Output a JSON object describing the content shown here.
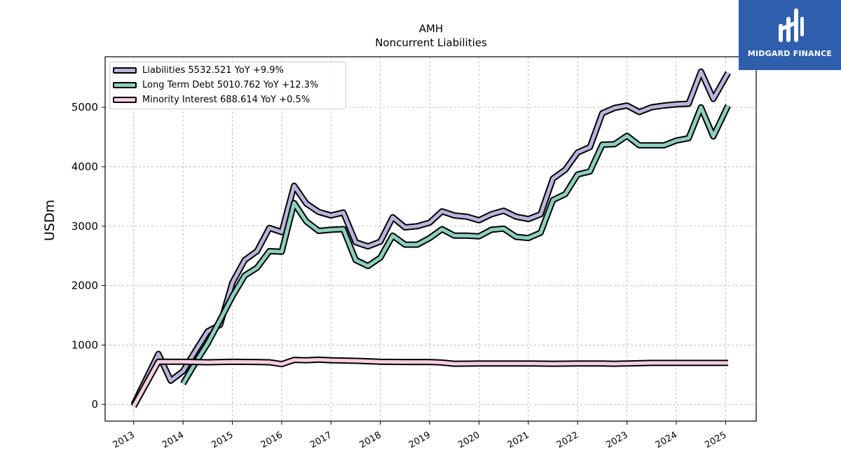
{
  "chart_data": {
    "type": "line",
    "title": "AMH",
    "subtitle": "Noncurrent  Liabilities",
    "ylabel": "USDm",
    "xlabel": "",
    "ylim": [
      -280,
      5850
    ],
    "xlim": [
      2012.42,
      2025.62
    ],
    "yticks": [
      0,
      1000,
      2000,
      3000,
      4000,
      5000
    ],
    "xticks": [
      "2013",
      "2014",
      "2015",
      "2016",
      "2017",
      "2018",
      "2019",
      "2020",
      "2021",
      "2022",
      "2023",
      "2024",
      "2025"
    ],
    "grid": true,
    "legend_position": "top-left",
    "series": [
      {
        "name": "Liabilities  5532.521 YoY +9.9%",
        "color": "#b8b5dc",
        "points": [
          [
            2013.0,
            0
          ],
          [
            2013.5,
            850
          ],
          [
            2013.75,
            400
          ],
          [
            2014.0,
            560
          ],
          [
            2014.25,
            900
          ],
          [
            2014.5,
            1230
          ],
          [
            2014.75,
            1340
          ],
          [
            2015.0,
            2050
          ],
          [
            2015.25,
            2430
          ],
          [
            2015.5,
            2580
          ],
          [
            2015.75,
            2970
          ],
          [
            2016.0,
            2900
          ],
          [
            2016.25,
            3680
          ],
          [
            2016.5,
            3380
          ],
          [
            2016.75,
            3240
          ],
          [
            2017.0,
            3180
          ],
          [
            2017.25,
            3230
          ],
          [
            2017.5,
            2730
          ],
          [
            2017.75,
            2660
          ],
          [
            2018.0,
            2740
          ],
          [
            2018.25,
            3150
          ],
          [
            2018.5,
            2980
          ],
          [
            2018.75,
            3000
          ],
          [
            2019.0,
            3060
          ],
          [
            2019.25,
            3250
          ],
          [
            2019.5,
            3180
          ],
          [
            2019.75,
            3160
          ],
          [
            2020.0,
            3100
          ],
          [
            2020.25,
            3200
          ],
          [
            2020.5,
            3260
          ],
          [
            2020.75,
            3160
          ],
          [
            2021.0,
            3120
          ],
          [
            2021.25,
            3200
          ],
          [
            2021.5,
            3800
          ],
          [
            2021.75,
            3950
          ],
          [
            2022.0,
            4240
          ],
          [
            2022.25,
            4330
          ],
          [
            2022.5,
            4900
          ],
          [
            2022.75,
            4990
          ],
          [
            2023.0,
            5030
          ],
          [
            2023.25,
            4920
          ],
          [
            2023.5,
            5000
          ],
          [
            2023.75,
            5030
          ],
          [
            2024.0,
            5050
          ],
          [
            2024.25,
            5060
          ],
          [
            2024.5,
            5600
          ],
          [
            2024.75,
            5140
          ],
          [
            2025.05,
            5580
          ]
        ]
      },
      {
        "name": "Long Term Debt  5010.762 YoY +12.3%",
        "color": "#8ccfbf",
        "points": [
          [
            2014.0,
            350
          ],
          [
            2014.25,
            700
          ],
          [
            2014.5,
            1030
          ],
          [
            2014.75,
            1420
          ],
          [
            2015.0,
            1820
          ],
          [
            2015.25,
            2170
          ],
          [
            2015.5,
            2300
          ],
          [
            2015.75,
            2580
          ],
          [
            2016.0,
            2570
          ],
          [
            2016.25,
            3390
          ],
          [
            2016.5,
            3080
          ],
          [
            2016.75,
            2920
          ],
          [
            2017.0,
            2940
          ],
          [
            2017.25,
            2950
          ],
          [
            2017.5,
            2430
          ],
          [
            2017.75,
            2330
          ],
          [
            2018.0,
            2470
          ],
          [
            2018.25,
            2840
          ],
          [
            2018.5,
            2690
          ],
          [
            2018.75,
            2690
          ],
          [
            2019.0,
            2800
          ],
          [
            2019.25,
            2950
          ],
          [
            2019.5,
            2840
          ],
          [
            2019.75,
            2840
          ],
          [
            2020.0,
            2830
          ],
          [
            2020.25,
            2940
          ],
          [
            2020.5,
            2960
          ],
          [
            2020.75,
            2820
          ],
          [
            2021.0,
            2800
          ],
          [
            2021.25,
            2890
          ],
          [
            2021.5,
            3440
          ],
          [
            2021.75,
            3540
          ],
          [
            2022.0,
            3870
          ],
          [
            2022.25,
            3920
          ],
          [
            2022.5,
            4370
          ],
          [
            2022.75,
            4380
          ],
          [
            2023.0,
            4520
          ],
          [
            2023.25,
            4360
          ],
          [
            2023.5,
            4360
          ],
          [
            2023.75,
            4360
          ],
          [
            2024.0,
            4440
          ],
          [
            2024.25,
            4480
          ],
          [
            2024.5,
            5000
          ],
          [
            2024.75,
            4510
          ],
          [
            2025.05,
            5030
          ]
        ]
      },
      {
        "name": "Minority Interest  688.614 YoY +0.5%",
        "color": "#f8cfe0",
        "points": [
          [
            2013.0,
            -30
          ],
          [
            2013.5,
            720
          ],
          [
            2013.75,
            720
          ],
          [
            2014.0,
            720
          ],
          [
            2014.5,
            710
          ],
          [
            2015.0,
            720
          ],
          [
            2015.5,
            715
          ],
          [
            2015.75,
            710
          ],
          [
            2016.0,
            680
          ],
          [
            2016.25,
            750
          ],
          [
            2016.5,
            745
          ],
          [
            2016.75,
            755
          ],
          [
            2017.0,
            745
          ],
          [
            2017.5,
            735
          ],
          [
            2018.0,
            720
          ],
          [
            2018.5,
            715
          ],
          [
            2019.0,
            715
          ],
          [
            2019.25,
            705
          ],
          [
            2019.5,
            685
          ],
          [
            2020.0,
            690
          ],
          [
            2020.5,
            690
          ],
          [
            2021.0,
            690
          ],
          [
            2021.5,
            685
          ],
          [
            2022.0,
            690
          ],
          [
            2022.5,
            690
          ],
          [
            2022.75,
            685
          ],
          [
            2023.0,
            690
          ],
          [
            2023.5,
            700
          ],
          [
            2024.0,
            700
          ],
          [
            2024.5,
            700
          ],
          [
            2025.05,
            700
          ]
        ]
      }
    ]
  },
  "brand": {
    "name": "MIDGARD FINANCE",
    "color": "#2f5fac",
    "icon": "midgard-logo-icon"
  }
}
